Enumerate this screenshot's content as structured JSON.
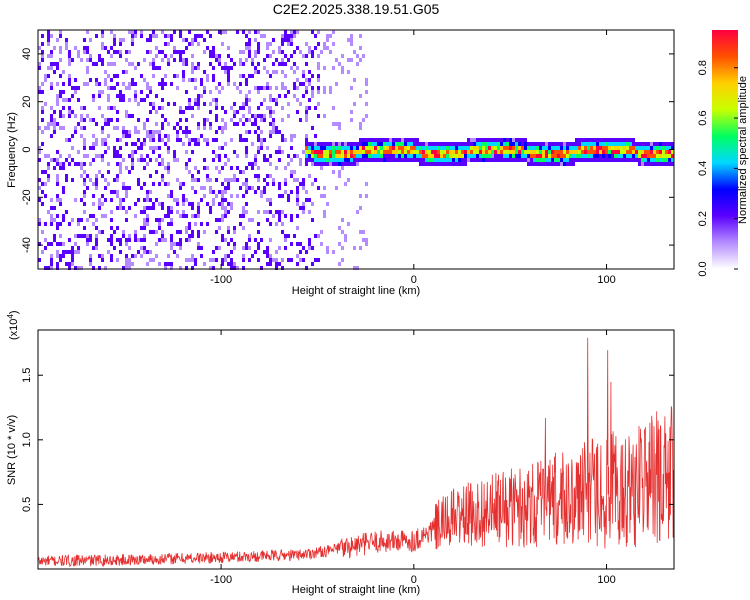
{
  "page_title": "C2E2.2025.338.19.51.G05",
  "chart_data": [
    {
      "type": "heatmap",
      "xlabel": "Height of straight line (km)",
      "ylabel": "Frequency (Hz)",
      "xlim": [
        -195,
        135
      ],
      "ylim": [
        -50,
        50
      ],
      "x_ticks": [
        -100,
        0,
        100
      ],
      "y_ticks": [
        -40,
        -20,
        0,
        20,
        40
      ],
      "grid": false,
      "colorbar": {
        "label": "Normalized spectral amplitude",
        "range": [
          0,
          0.95
        ],
        "ticks": [
          0.0,
          0.2,
          0.4,
          0.6,
          0.8
        ],
        "colors": [
          "#ffffff",
          "#b48cff",
          "#5a00ff",
          "#0000ff",
          "#00d8ff",
          "#00ff60",
          "#c8ff00",
          "#ffd000",
          "#ff5000",
          "#ff0040"
        ]
      },
      "signal_band": {
        "x_start": -58,
        "x_end": 135,
        "center_frequency_hz": 0,
        "noise_region_x_end": -25
      }
    },
    {
      "type": "line",
      "xlabel": "Height of straight line (km)",
      "ylabel": "SNR (10 * v/v)",
      "y_scale_label": "(x10",
      "y_scale_exponent": "4",
      "y_scale_suffix": ")",
      "xlim": [
        -195,
        135
      ],
      "ylim": [
        0,
        1.85
      ],
      "x_ticks": [
        -100,
        0,
        100
      ],
      "y_ticks": [
        0.5,
        1.0,
        1.5
      ],
      "y_tick_labels": [
        "0.5",
        "1.0",
        "1.5"
      ],
      "grid": false,
      "series": [
        {
          "color": "#e53030",
          "trend_x": [
            -195,
            -150,
            -100,
            -60,
            -40,
            -20,
            0,
            10,
            20,
            40,
            60,
            80,
            100,
            115,
            125,
            135
          ],
          "trend_y": [
            0.06,
            0.07,
            0.09,
            0.11,
            0.15,
            0.21,
            0.22,
            0.3,
            0.4,
            0.45,
            0.5,
            0.55,
            0.6,
            0.65,
            0.7,
            0.72
          ]
        }
      ]
    }
  ]
}
